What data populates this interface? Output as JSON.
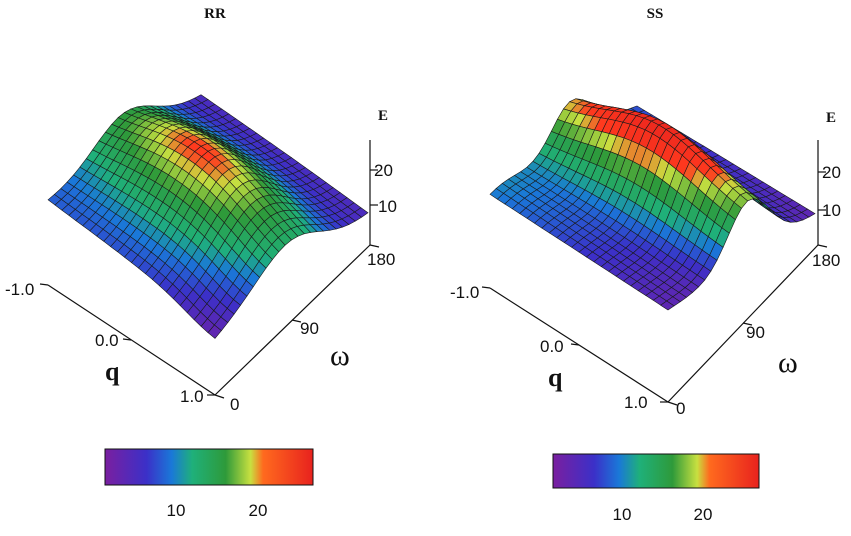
{
  "chart_data": [
    {
      "type": "surface3d",
      "title": "RR",
      "axes": {
        "q": {
          "label": "q",
          "range": [
            -1.0,
            1.0
          ],
          "ticks": [
            "-1.0",
            "0.0",
            "1.0"
          ]
        },
        "omega": {
          "label": "ω",
          "range": [
            0,
            180
          ],
          "ticks": [
            "0",
            "90",
            "180"
          ]
        },
        "E": {
          "label": "E",
          "ticks": [
            "10",
            "20"
          ]
        }
      },
      "colorbar": {
        "ticks": [
          "10",
          "20"
        ],
        "range": [
          3,
          26
        ],
        "colormap": [
          "#7a1fa0",
          "#3b30c8",
          "#1a78d8",
          "#1fb07a",
          "#2e9a3a",
          "#c8e040",
          "#ff3a1e",
          "#e8221e"
        ]
      },
      "surface": {
        "description_free": true,
        "peak_omega": 90,
        "peak_q": 0.0
      }
    },
    {
      "type": "surface3d",
      "title": "SS",
      "axes": {
        "q": {
          "label": "q",
          "range": [
            -1.0,
            1.0
          ],
          "ticks": [
            "-1.0",
            "0.0",
            "1.0"
          ]
        },
        "omega": {
          "label": "ω",
          "range": [
            0,
            180
          ],
          "ticks": [
            "0",
            "90",
            "180"
          ]
        },
        "E": {
          "label": "E",
          "ticks": [
            "10",
            "20"
          ]
        }
      },
      "colorbar": {
        "ticks": [
          "10",
          "20"
        ],
        "range": [
          3,
          26
        ],
        "colormap": [
          "#7a1fa0",
          "#3b30c8",
          "#1a78d8",
          "#1fb07a",
          "#2e9a3a",
          "#c8e040",
          "#ff3a1e",
          "#e8221e"
        ]
      },
      "surface": {
        "peak_omega": 90,
        "peak_q": 0.0
      }
    }
  ]
}
